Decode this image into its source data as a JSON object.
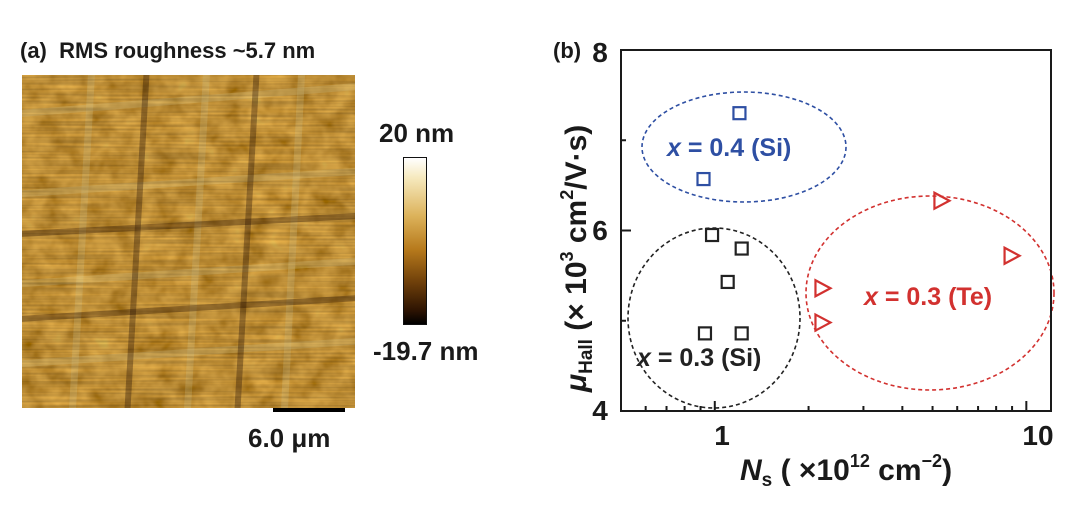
{
  "panel_a": {
    "label": "(a)",
    "title": "RMS roughness ~5.7 nm",
    "colorbar_max": "20 nm",
    "colorbar_min": "-19.7 nm",
    "scalebar": "6.0 μm"
  },
  "chart_data": {
    "type": "scatter",
    "panel_label": "(b)",
    "title": "",
    "xlabel": "N_s ( ×10^12 cm^-2)",
    "ylabel": "μ_Hall (× 10^3 cm^2/V·s)",
    "xscale": "log",
    "xlim": [
      0.5,
      12
    ],
    "ylim": [
      4,
      8
    ],
    "xticks": [
      {
        "value": 1,
        "label": "1"
      },
      {
        "value": 10,
        "label": "10"
      }
    ],
    "yticks": [
      {
        "value": 4,
        "label": "4"
      },
      {
        "value": 6,
        "label": "6"
      },
      {
        "value": 8,
        "label": "8"
      }
    ],
    "series": [
      {
        "name": "x = 0.4 (Si)",
        "color": "#2e4fa3",
        "marker": "square",
        "points": [
          [
            1.2,
            7.3
          ],
          [
            0.92,
            6.57
          ]
        ]
      },
      {
        "name": "x = 0.3 (Si)",
        "color": "#222222",
        "marker": "square",
        "points": [
          [
            0.98,
            5.95
          ],
          [
            1.22,
            5.8
          ],
          [
            1.1,
            5.43
          ],
          [
            0.93,
            4.86
          ],
          [
            1.22,
            4.86
          ]
        ]
      },
      {
        "name": "x = 0.3 (Te)",
        "color": "#d2312f",
        "marker": "triangle-right",
        "points": [
          [
            5.3,
            6.33
          ],
          [
            8.9,
            5.72
          ],
          [
            2.2,
            5.36
          ],
          [
            2.2,
            4.98
          ]
        ]
      }
    ],
    "annotations": [
      {
        "text": "x = 0.4 (Si)",
        "color": "#2e4fa3"
      },
      {
        "text": "x = 0.3 (Si)",
        "color": "#222222"
      },
      {
        "text": "x = 0.3 (Te)",
        "color": "#d2312f"
      }
    ]
  }
}
